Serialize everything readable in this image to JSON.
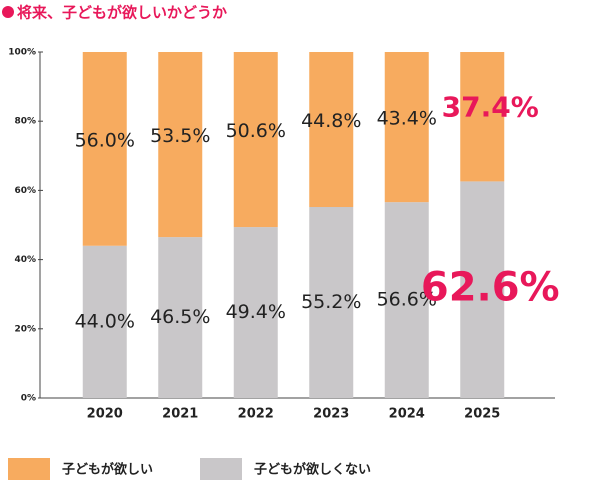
{
  "chart_data": {
    "type": "stacked_bar",
    "title": "将来、子どもが欲しいかどうか",
    "title_color": "#e8185a",
    "categories": [
      "2020",
      "2021",
      "2022",
      "2023",
      "2024",
      "2025"
    ],
    "series": [
      {
        "name": "子どもが欲しい",
        "color": "#f7ab5f",
        "values": [
          56.0,
          53.5,
          50.6,
          44.8,
          43.4,
          37.4
        ],
        "value_labels": [
          "56.0%",
          "53.5%",
          "50.6%",
          "44.8%",
          "43.4%",
          "37.4%"
        ]
      },
      {
        "name": "子どもが欲しくない",
        "color": "#c9c7c9",
        "values": [
          44.0,
          46.5,
          49.4,
          55.2,
          56.6,
          62.6
        ],
        "value_labels": [
          "44.0%",
          "46.5%",
          "49.4%",
          "55.2%",
          "56.6%",
          "62.6%"
        ]
      }
    ],
    "highlight": {
      "category": "2025",
      "color": "#e8185a"
    },
    "ylim": [
      0,
      100
    ],
    "yticks": [
      {
        "value": 0,
        "label": "0%"
      },
      {
        "value": 20,
        "label": "20%"
      },
      {
        "value": 40,
        "label": "40%"
      },
      {
        "value": 60,
        "label": "60%"
      },
      {
        "value": 80,
        "label": "80%"
      },
      {
        "value": 100,
        "label": "100%"
      }
    ],
    "legend": "bottom"
  }
}
